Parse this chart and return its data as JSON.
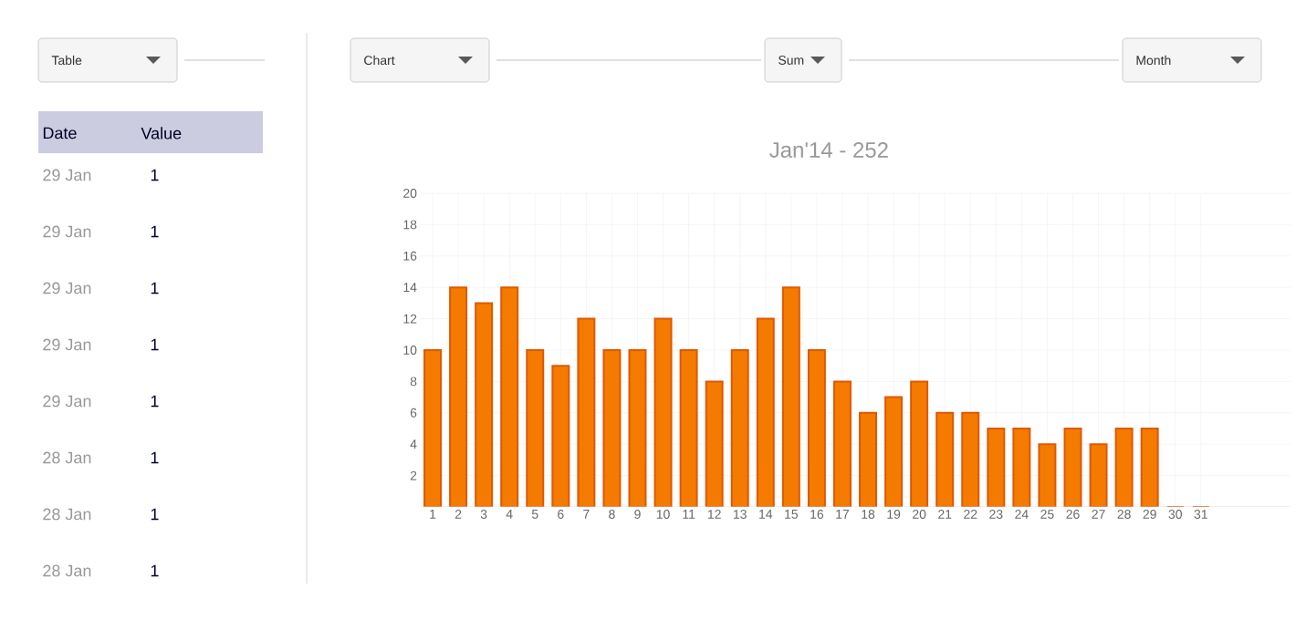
{
  "chart_data": {
    "type": "bar",
    "title": "Jan'14 - 252",
    "categories": [
      "1",
      "2",
      "3",
      "4",
      "5",
      "6",
      "7",
      "8",
      "9",
      "10",
      "11",
      "12",
      "13",
      "14",
      "15",
      "16",
      "17",
      "18",
      "19",
      "20",
      "21",
      "22",
      "23",
      "24",
      "25",
      "26",
      "27",
      "28",
      "29",
      "30",
      "31"
    ],
    "values": [
      10,
      14,
      13,
      14,
      10,
      9,
      12,
      10,
      10,
      12,
      10,
      8,
      10,
      12,
      14,
      10,
      8,
      6,
      7,
      8,
      6,
      6,
      5,
      5,
      4,
      5,
      4,
      5,
      5,
      0,
      0
    ],
    "color": "#f47b00",
    "ylim": [
      0,
      20
    ],
    "yticks": [
      2,
      4,
      6,
      8,
      10,
      12,
      14,
      16,
      18,
      20
    ],
    "grid": true,
    "annotations": [
      "Table",
      "Date",
      "Value",
      "29 Jan",
      "1",
      "29 Jan",
      "1",
      "29 Jan",
      "1",
      "29 Jan",
      "1",
      "29 Jan",
      "1",
      "28 Jan",
      "1",
      "28 Jan",
      "1",
      "28 Jan",
      "1",
      "Chart",
      "Sum",
      "Month"
    ]
  }
}
